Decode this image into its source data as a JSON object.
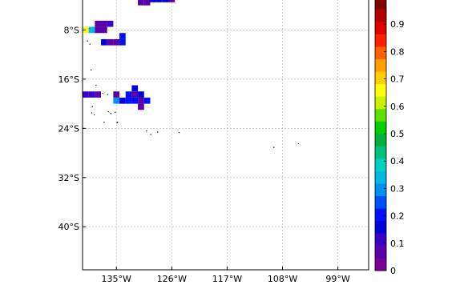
{
  "map": {
    "lon_range": [
      -140.5,
      -94
    ],
    "lat_range": [
      -47,
      -3
    ],
    "lon_ticks": [
      {
        "value": -135,
        "label": "135°W"
      },
      {
        "value": -126,
        "label": "126°W"
      },
      {
        "value": -117,
        "label": "117°W"
      },
      {
        "value": -108,
        "label": "108°W"
      },
      {
        "value": -99,
        "label": "99°W"
      }
    ],
    "lat_ticks": [
      {
        "value": -8,
        "label": "8°S"
      },
      {
        "value": -16,
        "label": "16°S"
      },
      {
        "value": -24,
        "label": "24°S"
      },
      {
        "value": -32,
        "label": "32°S"
      },
      {
        "value": -40,
        "label": "40°S"
      }
    ],
    "grid": true,
    "cells": [
      {
        "lon": -140.5,
        "lat": -8.0,
        "value": 0.66
      },
      {
        "lon": -139.5,
        "lat": -8.0,
        "value": 0.32
      },
      {
        "lon": -138.5,
        "lat": -8.0,
        "value": 0.06
      },
      {
        "lon": -137.5,
        "lat": -8.0,
        "value": 0.06
      },
      {
        "lon": -138.5,
        "lat": -7.0,
        "value": 0.06
      },
      {
        "lon": -137.5,
        "lat": -7.0,
        "value": 0.06
      },
      {
        "lon": -136.5,
        "lat": -7.0,
        "value": 0.12
      },
      {
        "lon": -137.5,
        "lat": -10.0,
        "value": 0.16
      },
      {
        "lon": -136.5,
        "lat": -10.0,
        "value": 0.06
      },
      {
        "lon": -135.5,
        "lat": -10.0,
        "value": 0.06
      },
      {
        "lon": -134.5,
        "lat": -10.0,
        "value": 0.2
      },
      {
        "lon": -134.5,
        "lat": -9.0,
        "value": 0.22
      },
      {
        "lon": -131.5,
        "lat": -3.5,
        "value": 0.06
      },
      {
        "lon": -130.5,
        "lat": -3.5,
        "value": 0.06
      },
      {
        "lon": -129.5,
        "lat": -3.0,
        "value": 0.18
      },
      {
        "lon": -128.5,
        "lat": -3.0,
        "value": 0.18
      },
      {
        "lon": -127.5,
        "lat": -3.0,
        "value": 0.18
      },
      {
        "lon": -126.5,
        "lat": -3.0,
        "value": 0.08
      },
      {
        "lon": -140.5,
        "lat": -18.5,
        "value": 0.1
      },
      {
        "lon": -139.5,
        "lat": -18.5,
        "value": 0.1
      },
      {
        "lon": -138.5,
        "lat": -18.5,
        "value": 0.06
      },
      {
        "lon": -135.5,
        "lat": -18.5,
        "value": 0.06
      },
      {
        "lon": -135.5,
        "lat": -19.5,
        "value": 0.3
      },
      {
        "lon": -134.5,
        "lat": -19.5,
        "value": 0.18
      },
      {
        "lon": -133.5,
        "lat": -18.5,
        "value": 0.2
      },
      {
        "lon": -133.5,
        "lat": -19.5,
        "value": 0.2
      },
      {
        "lon": -132.5,
        "lat": -17.5,
        "value": 0.18
      },
      {
        "lon": -132.5,
        "lat": -18.5,
        "value": 0.06
      },
      {
        "lon": -132.5,
        "lat": -19.5,
        "value": 0.2
      },
      {
        "lon": -131.5,
        "lat": -18.5,
        "value": 0.18
      },
      {
        "lon": -131.5,
        "lat": -19.5,
        "value": 0.06
      },
      {
        "lon": -131.5,
        "lat": -20.5,
        "value": 0.06
      },
      {
        "lon": -130.5,
        "lat": -19.5,
        "value": 0.2
      }
    ],
    "islands": [
      {
        "lon": -139.7,
        "lat": -9.8
      },
      {
        "lon": -139.3,
        "lat": -10.3
      },
      {
        "lon": -139.1,
        "lat": -14.5
      },
      {
        "lon": -138.3,
        "lat": -17.0
      },
      {
        "lon": -137.2,
        "lat": -18.3
      },
      {
        "lon": -136.4,
        "lat": -18.5
      },
      {
        "lon": -138.9,
        "lat": -20.5
      },
      {
        "lon": -139.0,
        "lat": -21.5
      },
      {
        "lon": -138.6,
        "lat": -21.8
      },
      {
        "lon": -136.3,
        "lat": -21.3
      },
      {
        "lon": -135.9,
        "lat": -21.6
      },
      {
        "lon": -135.2,
        "lat": -21.4
      },
      {
        "lon": -134.8,
        "lat": -23.0
      },
      {
        "lon": -134.9,
        "lat": -23.1
      },
      {
        "lon": -137.0,
        "lat": -23.0
      },
      {
        "lon": -130.1,
        "lat": -24.4
      },
      {
        "lon": -129.4,
        "lat": -25.0
      },
      {
        "lon": -128.3,
        "lat": -24.6
      },
      {
        "lon": -124.8,
        "lat": -24.7
      },
      {
        "lon": -109.4,
        "lat": -27.1
      },
      {
        "lon": -105.4,
        "lat": -26.5
      }
    ]
  },
  "colorbar": {
    "vmin": 0,
    "vmax": 1,
    "colors": [
      "#7a0097",
      "#5a00a8",
      "#3a00c8",
      "#0000d8",
      "#0010ff",
      "#0050ff",
      "#0090f0",
      "#00b8e0",
      "#00d0c0",
      "#00c080",
      "#00b040",
      "#00d000",
      "#60e000",
      "#c8f000",
      "#ffff00",
      "#ffd000",
      "#ffa000",
      "#ff6000",
      "#ff2000",
      "#e00000",
      "#b00000",
      "#800000"
    ],
    "ticks": [
      {
        "value": 0,
        "label": "0"
      },
      {
        "value": 0.1,
        "label": "0.1"
      },
      {
        "value": 0.2,
        "label": "0.2"
      },
      {
        "value": 0.3,
        "label": "0.3"
      },
      {
        "value": 0.4,
        "label": "0.4"
      },
      {
        "value": 0.5,
        "label": "0.5"
      },
      {
        "value": 0.6,
        "label": "0.6"
      },
      {
        "value": 0.7,
        "label": "0.7"
      },
      {
        "value": 0.8,
        "label": "0.8"
      },
      {
        "value": 0.9,
        "label": "0.9"
      }
    ]
  }
}
